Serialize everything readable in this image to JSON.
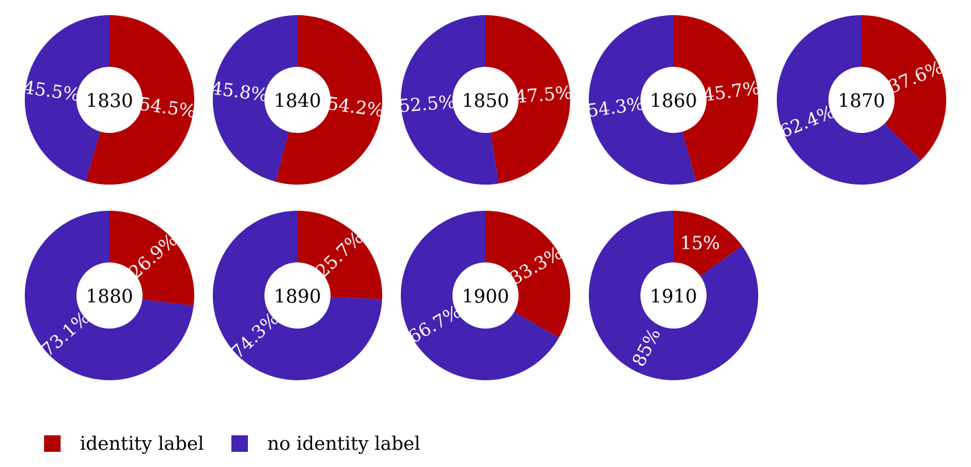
{
  "chart_data": {
    "type": "pie",
    "variant": "donut-small-multiples",
    "colors": {
      "identity_label": "#b30000",
      "no_identity_label": "#4422b2"
    },
    "legend": {
      "placement": "bottom-left",
      "entries": [
        {
          "key": "identity_label",
          "label": "identity label"
        },
        {
          "key": "no_identity_label",
          "label": "no identity label"
        }
      ]
    },
    "charts": [
      {
        "year": "1830",
        "identity_label": 54.5,
        "no_identity_label": 45.5,
        "labels": [
          "54.5%",
          "45.5%"
        ]
      },
      {
        "year": "1840",
        "identity_label": 54.2,
        "no_identity_label": 45.8,
        "labels": [
          "54.2%",
          "45.8%"
        ]
      },
      {
        "year": "1850",
        "identity_label": 47.5,
        "no_identity_label": 52.5,
        "labels": [
          "47.5%",
          "52.5%"
        ]
      },
      {
        "year": "1860",
        "identity_label": 45.7,
        "no_identity_label": 54.3,
        "labels": [
          "45.7%",
          "54.3%"
        ]
      },
      {
        "year": "1870",
        "identity_label": 37.6,
        "no_identity_label": 62.4,
        "labels": [
          "37.6%",
          "62.4%"
        ]
      },
      {
        "year": "1880",
        "identity_label": 26.9,
        "no_identity_label": 73.1,
        "labels": [
          "26.9%",
          "73.1%"
        ]
      },
      {
        "year": "1890",
        "identity_label": 25.7,
        "no_identity_label": 74.3,
        "labels": [
          "25.7%",
          "74.3%"
        ]
      },
      {
        "year": "1900",
        "identity_label": 33.3,
        "no_identity_label": 66.7,
        "labels": [
          "33.3%",
          "66.7%"
        ]
      },
      {
        "year": "1910",
        "identity_label": 15,
        "no_identity_label": 85,
        "labels": [
          "15%",
          "85%"
        ]
      }
    ]
  }
}
